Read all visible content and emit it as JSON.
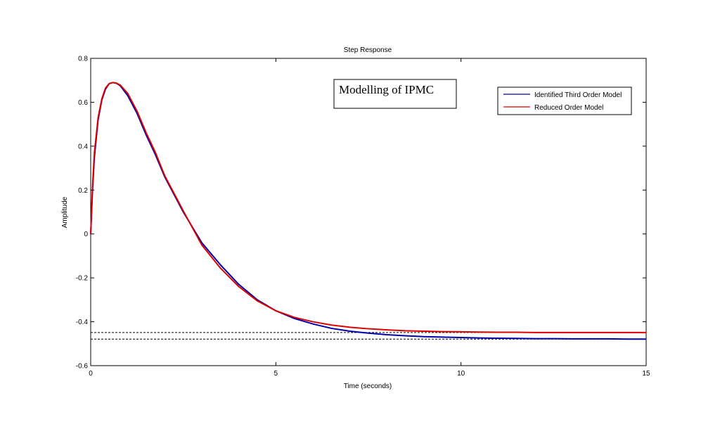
{
  "chart_data": {
    "type": "line",
    "title": "Step Response",
    "xlabel": "Time (seconds)",
    "ylabel": "Amplitude",
    "xlim": [
      0,
      15
    ],
    "ylim": [
      -0.6,
      0.8
    ],
    "xticks": [
      0,
      5,
      10,
      15
    ],
    "xtick_labels": [
      "0",
      "5",
      "10",
      "15"
    ],
    "yticks": [
      -0.6,
      -0.4,
      -0.2,
      0,
      0.2,
      0.4,
      0.6,
      0.8
    ],
    "ytick_labels": [
      "-0.6",
      "-0.4",
      "-0.2",
      "0",
      "0.2",
      "0.4",
      "0.6",
      "0.8"
    ],
    "grid": false,
    "legend_position": "top-right",
    "annotation": "Modelling of IPMC",
    "series": [
      {
        "name": "Identified Third Order Model",
        "color": "#0000aa",
        "x": [
          0,
          0.05,
          0.1,
          0.2,
          0.3,
          0.4,
          0.5,
          0.6,
          0.7,
          0.8,
          1.0,
          1.25,
          1.5,
          1.75,
          2.0,
          2.5,
          3.0,
          3.5,
          4.0,
          4.5,
          5.0,
          5.5,
          6.0,
          6.5,
          7.0,
          7.5,
          8.0,
          8.5,
          9.0,
          9.5,
          10.0,
          10.5,
          11.0,
          11.5,
          12.0,
          12.5,
          13.0,
          13.5,
          14.0,
          14.5,
          15.0
        ],
        "values": [
          0.0,
          0.2,
          0.35,
          0.52,
          0.61,
          0.66,
          0.685,
          0.69,
          0.686,
          0.675,
          0.63,
          0.55,
          0.45,
          0.36,
          0.26,
          0.1,
          -0.04,
          -0.14,
          -0.23,
          -0.3,
          -0.35,
          -0.385,
          -0.41,
          -0.43,
          -0.443,
          -0.452,
          -0.459,
          -0.464,
          -0.468,
          -0.47,
          -0.472,
          -0.474,
          -0.475,
          -0.476,
          -0.477,
          -0.477,
          -0.478,
          -0.478,
          -0.478,
          -0.479,
          -0.479
        ]
      },
      {
        "name": "Reduced Order Model",
        "color": "#dd0000",
        "x": [
          0,
          0.05,
          0.1,
          0.2,
          0.3,
          0.4,
          0.5,
          0.6,
          0.7,
          0.8,
          1.0,
          1.25,
          1.5,
          1.75,
          2.0,
          2.5,
          3.0,
          3.5,
          4.0,
          4.5,
          5.0,
          5.5,
          6.0,
          6.5,
          7.0,
          7.5,
          8.0,
          8.5,
          9.0,
          9.5,
          10.0,
          10.5,
          11.0,
          11.5,
          12.0,
          12.5,
          13.0,
          13.5,
          14.0,
          14.5,
          15.0
        ],
        "values": [
          0.0,
          0.22,
          0.37,
          0.53,
          0.615,
          0.665,
          0.685,
          0.69,
          0.687,
          0.678,
          0.64,
          0.56,
          0.46,
          0.37,
          0.265,
          0.105,
          -0.05,
          -0.155,
          -0.24,
          -0.305,
          -0.35,
          -0.38,
          -0.4,
          -0.415,
          -0.425,
          -0.432,
          -0.437,
          -0.441,
          -0.443,
          -0.445,
          -0.446,
          -0.447,
          -0.448,
          -0.448,
          -0.449,
          -0.449,
          -0.449,
          -0.449,
          -0.449,
          -0.449,
          -0.449
        ]
      }
    ],
    "reference_lines": [
      {
        "y": -0.449,
        "style": "dashed",
        "color": "#000000"
      },
      {
        "y": -0.479,
        "style": "dashed",
        "color": "#000000"
      }
    ]
  }
}
